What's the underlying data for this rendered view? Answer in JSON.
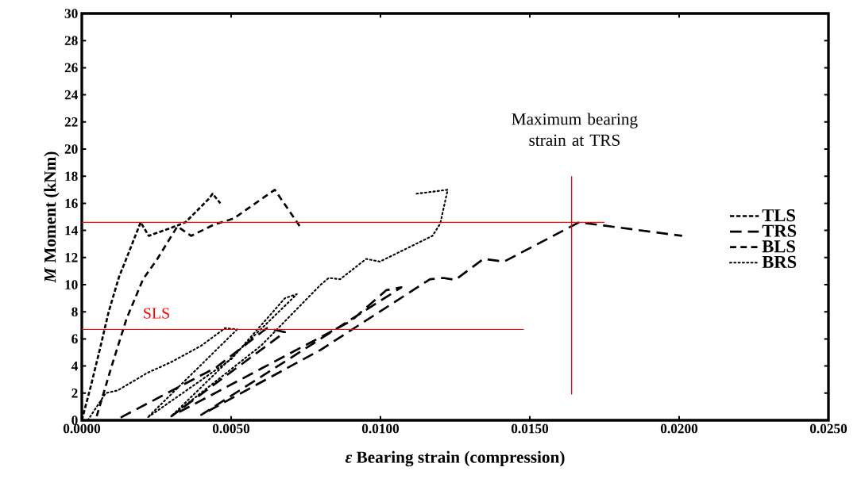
{
  "chart_data": {
    "type": "line",
    "xlabel": "*ε*  Bearing strain (compression)",
    "ylabel": "*M*  Moment (kNm)",
    "xlim": [
      0,
      0.025
    ],
    "ylim": [
      0,
      30
    ],
    "xticks": [
      {
        "value": 0,
        "label": "0.0000"
      },
      {
        "value": 0.005,
        "label": "0.0050"
      },
      {
        "value": 0.01,
        "label": "0.0100"
      },
      {
        "value": 0.015,
        "label": "0.0150"
      },
      {
        "value": 0.02,
        "label": "0.0200"
      },
      {
        "value": 0.025,
        "label": "0.0250"
      }
    ],
    "yticks": [
      0,
      2,
      4,
      6,
      8,
      10,
      12,
      14,
      16,
      18,
      20,
      22,
      24,
      26,
      28,
      30
    ],
    "grid": false,
    "legend": "right",
    "marker": "none",
    "series": [
      {
        "name": "TLS",
        "color": "#000000",
        "line_style": "dashed",
        "x": [
          0,
          0.0003,
          0.0006,
          0.0009,
          0.00125,
          0.00147,
          0.00197,
          0.00224,
          0.003,
          0.00347,
          0.00424,
          0.00438,
          0.00464
        ],
        "values": [
          0,
          2.5,
          5.2,
          8.0,
          10.6,
          11.8,
          14.6,
          13.6,
          14.2,
          14.6,
          16.3,
          16.7,
          16.0
        ]
      },
      {
        "name": "TRS",
        "color": "#000000",
        "line_style": "dashed",
        "x": [
          0.0013,
          0.0045,
          0.0062,
          0.0068,
          0.003,
          0.006,
          0.009,
          0.0102,
          0.0107,
          0.004,
          0.008,
          0.01166,
          0.0121,
          0.0125,
          0.01345,
          0.01414,
          0.01665,
          0.0201
        ],
        "values": [
          0.2,
          3.9,
          6.8,
          6.5,
          0.3,
          3.8,
          7.3,
          9.6,
          9.8,
          0.4,
          5.2,
          10.4,
          10.5,
          10.35,
          11.9,
          11.7,
          14.6,
          13.6
        ]
      },
      {
        "name": "BLS",
        "color": "#000000",
        "line_style": "dashed",
        "x": [
          0.0005,
          0.001,
          0.0015,
          0.00205,
          0.00253,
          0.0032,
          0.00366,
          0.0044,
          0.0051,
          0.00646,
          0.0073
        ],
        "values": [
          0.3,
          4.0,
          7.5,
          10.4,
          11.9,
          14.3,
          13.6,
          14.4,
          14.9,
          17.0,
          14.3
        ]
      },
      {
        "name": "BRS",
        "color": "#000000",
        "line_style": "dotted",
        "x": [
          0.0002,
          0.0008,
          0.0012,
          0.0022,
          0.003,
          0.004,
          0.0048,
          0.0052,
          0.0022,
          0.005,
          0.0068,
          0.0072,
          0.003,
          0.006,
          0.008,
          0.00827,
          0.00865,
          0.00952,
          0.00998,
          0.01174,
          0.012,
          0.01225,
          0.01118
        ],
        "values": [
          0,
          2.0,
          2.2,
          3.5,
          4.3,
          5.5,
          6.8,
          6.7,
          0.2,
          4.5,
          9.0,
          9.3,
          0.3,
          5.5,
          10.0,
          10.5,
          10.4,
          11.9,
          11.7,
          13.6,
          14.5,
          17.0,
          16.7
        ]
      },
      {
        "color": "#ff0000",
        "line_style": "solid",
        "x": [
          0,
          0.0175
        ],
        "values": [
          14.6,
          14.6
        ]
      },
      {
        "color": "#ff0000",
        "line_style": "solid",
        "x": [
          0,
          0.0148
        ],
        "values": [
          6.7,
          6.7
        ]
      },
      {
        "color": "#ff0000",
        "line_style": "solid",
        "x": [
          0.0164,
          0.0164
        ],
        "values": [
          1.9,
          18.0
        ]
      }
    ],
    "annotations": [
      "SLS",
      "Maximum bearing strain at TRS"
    ]
  }
}
